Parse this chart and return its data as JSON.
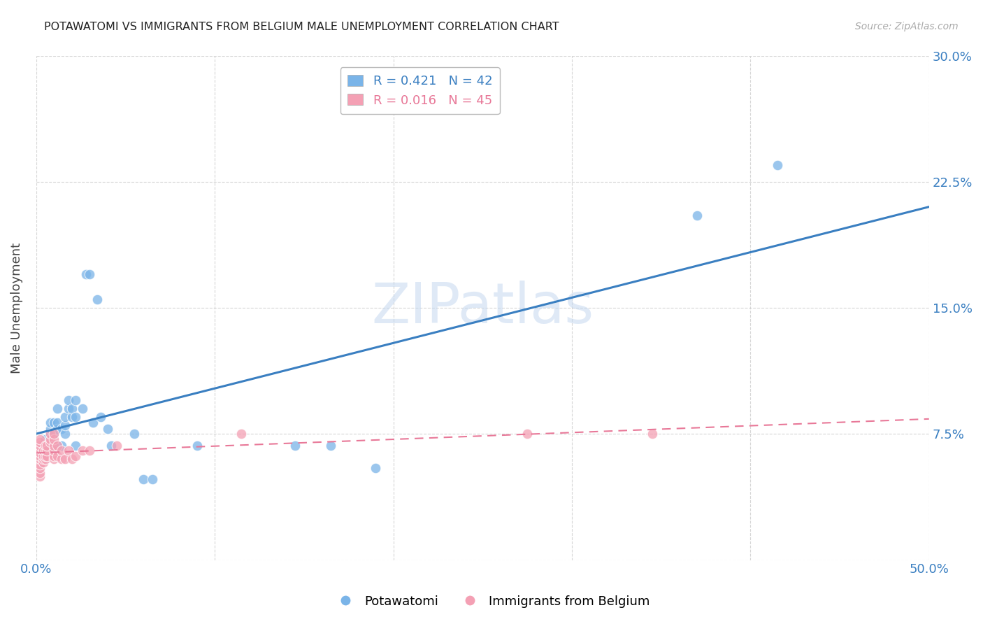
{
  "title": "POTAWATOMI VS IMMIGRANTS FROM BELGIUM MALE UNEMPLOYMENT CORRELATION CHART",
  "source": "Source: ZipAtlas.com",
  "ylabel": "Male Unemployment",
  "xlim": [
    0.0,
    0.5
  ],
  "ylim": [
    0.0,
    0.3
  ],
  "xticks": [
    0.0,
    0.1,
    0.2,
    0.3,
    0.4,
    0.5
  ],
  "yticks": [
    0.0,
    0.075,
    0.15,
    0.225,
    0.3
  ],
  "ytick_labels": [
    "",
    "7.5%",
    "15.0%",
    "22.5%",
    "30.0%"
  ],
  "xtick_labels": [
    "0.0%",
    "",
    "",
    "",
    "",
    "50.0%"
  ],
  "watermark_text": "ZIPatlas",
  "blue_scatter_color": "#7ab4e8",
  "pink_scatter_color": "#f4a0b4",
  "blue_line_color": "#3a7fc1",
  "pink_line_color": "#e87898",
  "grid_color": "#cccccc",
  "potawatomi_x": [
    0.005,
    0.005,
    0.005,
    0.005,
    0.008,
    0.008,
    0.008,
    0.01,
    0.01,
    0.01,
    0.012,
    0.012,
    0.012,
    0.014,
    0.014,
    0.016,
    0.016,
    0.016,
    0.018,
    0.018,
    0.02,
    0.02,
    0.022,
    0.022,
    0.022,
    0.026,
    0.028,
    0.03,
    0.032,
    0.034,
    0.036,
    0.04,
    0.042,
    0.055,
    0.06,
    0.065,
    0.09,
    0.145,
    0.165,
    0.19,
    0.37,
    0.415
  ],
  "potawatomi_y": [
    0.06,
    0.065,
    0.068,
    0.072,
    0.075,
    0.078,
    0.082,
    0.068,
    0.075,
    0.082,
    0.078,
    0.082,
    0.09,
    0.068,
    0.078,
    0.075,
    0.08,
    0.085,
    0.09,
    0.095,
    0.085,
    0.09,
    0.068,
    0.085,
    0.095,
    0.09,
    0.17,
    0.17,
    0.082,
    0.155,
    0.085,
    0.078,
    0.068,
    0.075,
    0.048,
    0.048,
    0.068,
    0.068,
    0.068,
    0.055,
    0.205,
    0.235
  ],
  "belgium_x": [
    0.002,
    0.002,
    0.002,
    0.002,
    0.002,
    0.002,
    0.002,
    0.002,
    0.002,
    0.002,
    0.002,
    0.004,
    0.004,
    0.004,
    0.004,
    0.005,
    0.005,
    0.005,
    0.005,
    0.006,
    0.006,
    0.006,
    0.008,
    0.008,
    0.008,
    0.01,
    0.01,
    0.01,
    0.01,
    0.01,
    0.01,
    0.012,
    0.012,
    0.014,
    0.014,
    0.016,
    0.018,
    0.02,
    0.022,
    0.026,
    0.03,
    0.045,
    0.115,
    0.275,
    0.345
  ],
  "belgium_y": [
    0.05,
    0.052,
    0.055,
    0.057,
    0.06,
    0.062,
    0.064,
    0.066,
    0.068,
    0.07,
    0.072,
    0.058,
    0.06,
    0.062,
    0.065,
    0.06,
    0.062,
    0.065,
    0.068,
    0.062,
    0.065,
    0.068,
    0.07,
    0.072,
    0.075,
    0.06,
    0.062,
    0.065,
    0.068,
    0.072,
    0.075,
    0.062,
    0.068,
    0.06,
    0.065,
    0.06,
    0.065,
    0.06,
    0.062,
    0.065,
    0.065,
    0.068,
    0.075,
    0.075,
    0.075
  ]
}
